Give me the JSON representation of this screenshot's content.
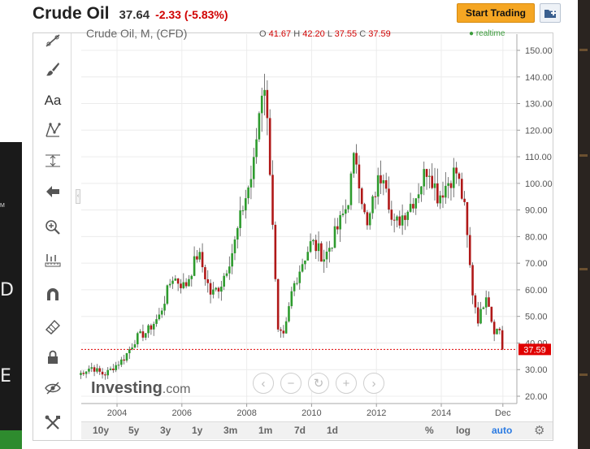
{
  "header": {
    "title": "Crude Oil",
    "price": "37.64",
    "change": "-2.33 (-5.83%)",
    "start_trading_label": "Start Trading",
    "portfolio_icon": "add-to-portfolio-icon"
  },
  "left_strip": {
    "mini_text": "M",
    "big_letters": [
      "D",
      "E"
    ]
  },
  "chart_header": {
    "legend": "Crude Oil, M, (CFD)",
    "ohlc": {
      "o_label": "O",
      "o": "41.67",
      "h_label": "H",
      "h": "42.20",
      "l_label": "L",
      "l": "37.55",
      "c_label": "C",
      "c": "37.59"
    },
    "realtime": "realtime"
  },
  "toolbar": {
    "tools": [
      "trendline-icon",
      "brush-icon",
      "text-tool",
      "pattern-icon",
      "fib-retracement-icon",
      "back-arrow-icon",
      "zoom-icon",
      "measure-icon",
      "magnet-icon",
      "eraser-icon",
      "lock-icon",
      "hide-icon",
      "tools-icon"
    ],
    "text_tool_label": "Aa"
  },
  "nav_buttons": [
    "‹",
    "−",
    "↻",
    "+",
    "›"
  ],
  "watermark": {
    "brand": "Investing",
    "domain": ".com"
  },
  "range_bar": {
    "buttons": [
      "10y",
      "5y",
      "3y",
      "1y",
      "3m",
      "1m",
      "7d",
      "1d"
    ],
    "percent": "%",
    "log": "log",
    "auto": "auto"
  },
  "colors": {
    "up": "#2e9b2e",
    "down": "#b01818",
    "accent": "#2a7ae2",
    "price_tag": "#e00000"
  },
  "chart_data": {
    "type": "candlestick",
    "title": "Crude Oil, M, (CFD)",
    "y_ticks": [
      "150.00",
      "140.00",
      "130.00",
      "120.00",
      "110.00",
      "100.00",
      "90.00",
      "80.00",
      "70.00",
      "60.00",
      "50.00",
      "40.00",
      "30.00",
      "20.00"
    ],
    "ylim": [
      20,
      150
    ],
    "x_ticks": [
      "2004",
      "2006",
      "2008",
      "2010",
      "2012",
      "2014",
      "Dec"
    ],
    "last_price": "37.59",
    "anchors": [
      {
        "t": 2002.8,
        "v": 28
      },
      {
        "t": 2003.2,
        "v": 31
      },
      {
        "t": 2003.6,
        "v": 28
      },
      {
        "t": 2004.2,
        "v": 34
      },
      {
        "t": 2004.6,
        "v": 42
      },
      {
        "t": 2004.9,
        "v": 44
      },
      {
        "t": 2005.3,
        "v": 50
      },
      {
        "t": 2005.7,
        "v": 65
      },
      {
        "t": 2006.1,
        "v": 61
      },
      {
        "t": 2006.5,
        "v": 74
      },
      {
        "t": 2006.9,
        "v": 58
      },
      {
        "t": 2007.2,
        "v": 62
      },
      {
        "t": 2007.6,
        "v": 76
      },
      {
        "t": 2007.9,
        "v": 92
      },
      {
        "t": 2008.2,
        "v": 105
      },
      {
        "t": 2008.45,
        "v": 135
      },
      {
        "t": 2008.55,
        "v": 138
      },
      {
        "t": 2008.75,
        "v": 100
      },
      {
        "t": 2008.95,
        "v": 44
      },
      {
        "t": 2009.15,
        "v": 42
      },
      {
        "t": 2009.4,
        "v": 60
      },
      {
        "t": 2009.7,
        "v": 70
      },
      {
        "t": 2010.0,
        "v": 78
      },
      {
        "t": 2010.4,
        "v": 72
      },
      {
        "t": 2010.8,
        "v": 83
      },
      {
        "t": 2011.1,
        "v": 92
      },
      {
        "t": 2011.35,
        "v": 112
      },
      {
        "t": 2011.7,
        "v": 82
      },
      {
        "t": 2012.0,
        "v": 99
      },
      {
        "t": 2012.25,
        "v": 106
      },
      {
        "t": 2012.5,
        "v": 83
      },
      {
        "t": 2012.8,
        "v": 88
      },
      {
        "t": 2013.2,
        "v": 95
      },
      {
        "t": 2013.6,
        "v": 107
      },
      {
        "t": 2013.9,
        "v": 95
      },
      {
        "t": 2014.45,
        "v": 105
      },
      {
        "t": 2014.7,
        "v": 92
      },
      {
        "t": 2014.95,
        "v": 60
      },
      {
        "t": 2015.15,
        "v": 48
      },
      {
        "t": 2015.4,
        "v": 60
      },
      {
        "t": 2015.6,
        "v": 45
      },
      {
        "t": 2015.8,
        "v": 45
      },
      {
        "t": 2015.95,
        "v": 37.6
      }
    ]
  }
}
